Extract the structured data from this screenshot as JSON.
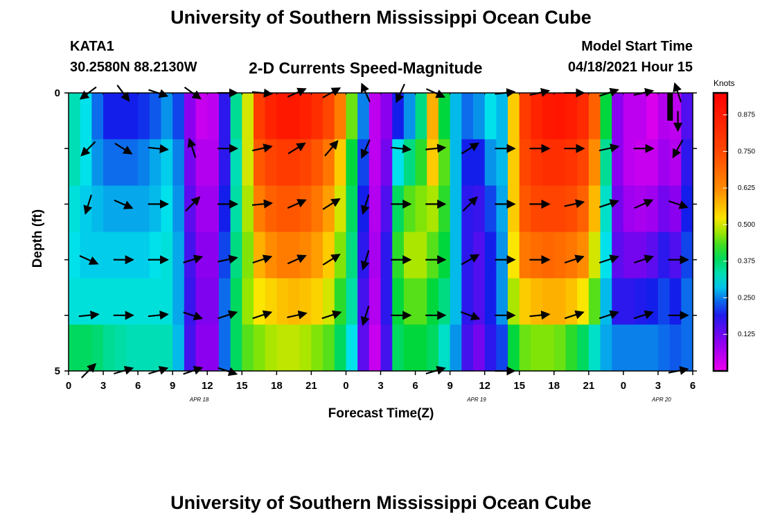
{
  "header": {
    "title": "University of Southern Mississippi Ocean Cube",
    "station": "KATA1",
    "coords": "30.2580N  88.2130W",
    "plot_title": "2-D Currents Speed-Magnitude",
    "model_label": "Model Start Time",
    "model_time": "04/18/2021 Hour 15"
  },
  "footer": {
    "title": "University of Southern Mississippi Ocean Cube"
  },
  "chart_data": {
    "type": "heatmap",
    "title": "2-D Currents Speed-Magnitude",
    "xlabel": "Forecast Time(Z)",
    "ylabel": "Depth (ft)",
    "x_ticks": [
      "0",
      "3",
      "6",
      "9",
      "12",
      "15",
      "18",
      "21",
      "0",
      "3",
      "6",
      "9",
      "12",
      "15",
      "18",
      "21",
      "0",
      "3",
      "6"
    ],
    "y_ticks": [
      "0",
      "5"
    ],
    "y_range": [
      0,
      5
    ],
    "date_labels": [
      {
        "text": "APR 18",
        "hour": 11.3
      },
      {
        "text": "APR 19",
        "hour": 35.3
      },
      {
        "text": "APR 20",
        "hour": 51.3
      }
    ],
    "colorbar": {
      "title": "Knots",
      "ticks": [
        "0.875",
        "0.750",
        "0.625",
        "0.500",
        "0.375",
        "0.250",
        "0.125"
      ],
      "tick_values": [
        0.875,
        0.75,
        0.625,
        0.5,
        0.375,
        0.25,
        0.125
      ],
      "range": [
        0,
        0.95
      ]
    },
    "hours": [
      0,
      1,
      2,
      3,
      4,
      5,
      6,
      7,
      8,
      9,
      10,
      11,
      12,
      13,
      14,
      15,
      16,
      17,
      18,
      19,
      20,
      21,
      22,
      23,
      24,
      25,
      26,
      27,
      28,
      29,
      30,
      31,
      32,
      33,
      34,
      35,
      36,
      37,
      38,
      39,
      40,
      41,
      42,
      43,
      44,
      45,
      46,
      47,
      48,
      49,
      50,
      51,
      52,
      53,
      54
    ],
    "speed_by_layer": [
      [
        0.33,
        0.3,
        0.24,
        0.2,
        0.2,
        0.2,
        0.21,
        0.23,
        0.26,
        0.22,
        0.1,
        0.04,
        0.05,
        0.18,
        0.35,
        0.5,
        0.78,
        0.85,
        0.88,
        0.88,
        0.86,
        0.82,
        0.75,
        0.65,
        0.45,
        0.25,
        0.05,
        0.1,
        0.2,
        0.26,
        0.36,
        0.58,
        0.4,
        0.28,
        0.24,
        0.26,
        0.3,
        0.28,
        0.55,
        0.78,
        0.85,
        0.88,
        0.89,
        0.87,
        0.83,
        0.7,
        0.4,
        0.1,
        0.05,
        0.05,
        0.02,
        0.06,
        0.05,
        0.15
      ],
      [
        0.33,
        0.3,
        0.26,
        0.24,
        0.24,
        0.24,
        0.25,
        0.27,
        0.29,
        0.25,
        0.12,
        0.06,
        0.06,
        0.18,
        0.33,
        0.5,
        0.72,
        0.76,
        0.78,
        0.78,
        0.76,
        0.72,
        0.66,
        0.55,
        0.4,
        0.22,
        0.05,
        0.12,
        0.3,
        0.36,
        0.42,
        0.55,
        0.44,
        0.28,
        0.2,
        0.2,
        0.26,
        0.28,
        0.55,
        0.75,
        0.8,
        0.82,
        0.82,
        0.8,
        0.76,
        0.62,
        0.35,
        0.1,
        0.05,
        0.04,
        0.04,
        0.08,
        0.06,
        0.18
      ],
      [
        0.31,
        0.29,
        0.28,
        0.27,
        0.27,
        0.27,
        0.27,
        0.28,
        0.3,
        0.26,
        0.14,
        0.08,
        0.08,
        0.2,
        0.34,
        0.48,
        0.65,
        0.7,
        0.72,
        0.72,
        0.7,
        0.66,
        0.6,
        0.5,
        0.38,
        0.2,
        0.06,
        0.15,
        0.38,
        0.44,
        0.46,
        0.48,
        0.42,
        0.28,
        0.18,
        0.17,
        0.22,
        0.27,
        0.55,
        0.72,
        0.75,
        0.76,
        0.76,
        0.74,
        0.7,
        0.57,
        0.32,
        0.12,
        0.08,
        0.07,
        0.08,
        0.12,
        0.1,
        0.2
      ],
      [
        0.3,
        0.29,
        0.29,
        0.29,
        0.29,
        0.29,
        0.29,
        0.3,
        0.31,
        0.27,
        0.16,
        0.1,
        0.1,
        0.22,
        0.36,
        0.46,
        0.58,
        0.62,
        0.65,
        0.65,
        0.63,
        0.6,
        0.55,
        0.46,
        0.36,
        0.18,
        0.07,
        0.18,
        0.42,
        0.48,
        0.48,
        0.44,
        0.4,
        0.28,
        0.18,
        0.15,
        0.2,
        0.26,
        0.52,
        0.66,
        0.68,
        0.69,
        0.68,
        0.66,
        0.62,
        0.5,
        0.3,
        0.14,
        0.12,
        0.12,
        0.14,
        0.18,
        0.15,
        0.22
      ],
      [
        0.31,
        0.31,
        0.31,
        0.31,
        0.31,
        0.31,
        0.31,
        0.31,
        0.31,
        0.27,
        0.17,
        0.11,
        0.11,
        0.24,
        0.38,
        0.47,
        0.52,
        0.54,
        0.56,
        0.57,
        0.56,
        0.54,
        0.5,
        0.42,
        0.34,
        0.16,
        0.06,
        0.18,
        0.4,
        0.44,
        0.44,
        0.4,
        0.36,
        0.28,
        0.18,
        0.15,
        0.2,
        0.26,
        0.48,
        0.55,
        0.57,
        0.58,
        0.58,
        0.56,
        0.52,
        0.44,
        0.28,
        0.18,
        0.18,
        0.19,
        0.2,
        0.22,
        0.2,
        0.24
      ],
      [
        0.38,
        0.38,
        0.37,
        0.35,
        0.34,
        0.33,
        0.33,
        0.33,
        0.33,
        0.28,
        0.16,
        0.1,
        0.1,
        0.24,
        0.38,
        0.44,
        0.46,
        0.48,
        0.49,
        0.49,
        0.48,
        0.46,
        0.44,
        0.38,
        0.3,
        0.14,
        0.04,
        0.16,
        0.38,
        0.4,
        0.4,
        0.38,
        0.32,
        0.26,
        0.16,
        0.12,
        0.18,
        0.22,
        0.4,
        0.45,
        0.46,
        0.46,
        0.45,
        0.42,
        0.38,
        0.32,
        0.27,
        0.25,
        0.25,
        0.25,
        0.25,
        0.24,
        0.23,
        0.24
      ]
    ],
    "vector_layers": [
      0,
      0.5,
      1.0,
      2.0,
      3.0,
      4.0,
      5.0
    ],
    "vector_hours": [
      1,
      4,
      7,
      10,
      13,
      16,
      19,
      22,
      25,
      28,
      31,
      34,
      37,
      40,
      43,
      46,
      49,
      52
    ],
    "vectors": [
      [
        [
          -0.8,
          -0.6
        ],
        [
          0.6,
          -0.8
        ],
        [
          0.9,
          -0.3
        ],
        [
          0.7,
          -0.5
        ],
        [
          1.0,
          0.0
        ],
        [
          1.0,
          -0.1
        ],
        [
          0.9,
          0.4
        ],
        [
          0.9,
          0.5
        ],
        [
          -0.4,
          0.9
        ],
        [
          -0.4,
          -0.9
        ],
        [
          0.9,
          -0.4
        ],
        [
          0.0,
          0.0
        ],
        [
          0.9,
          0.1
        ],
        [
          0.9,
          0.2
        ],
        [
          1.0,
          0.0
        ],
        [
          0.9,
          0.3
        ],
        [
          0.9,
          0.2
        ],
        [
          -0.3,
          0.9
        ]
      ],
      [
        [
          0.0,
          0
        ],
        [
          0,
          0
        ],
        [
          0,
          0
        ],
        [
          0,
          0
        ],
        [
          0,
          0
        ],
        [
          0,
          0
        ],
        [
          0,
          0
        ],
        [
          0,
          0
        ],
        [
          0,
          0
        ],
        [
          0,
          0
        ],
        [
          0,
          0
        ],
        [
          0,
          0
        ],
        [
          0,
          0
        ],
        [
          0,
          0
        ],
        [
          0,
          0
        ],
        [
          0,
          0
        ],
        [
          0,
          0
        ],
        [
          0.0,
          -1.0
        ]
      ],
      [
        [
          -0.7,
          -0.7
        ],
        [
          0.8,
          -0.5
        ],
        [
          1.0,
          -0.1
        ],
        [
          -0.3,
          0.9
        ],
        [
          1.0,
          0.0
        ],
        [
          0.9,
          0.2
        ],
        [
          0.8,
          0.5
        ],
        [
          0.6,
          0.7
        ],
        [
          -0.4,
          -0.9
        ],
        [
          1.0,
          -0.1
        ],
        [
          1.0,
          0.1
        ],
        [
          0.8,
          0.5
        ],
        [
          1.0,
          0.0
        ],
        [
          1.0,
          0.0
        ],
        [
          1.0,
          0.0
        ],
        [
          0.9,
          0.2
        ],
        [
          1.0,
          0.0
        ],
        [
          -0.5,
          -0.9
        ]
      ],
      [
        [
          -0.3,
          -0.95
        ],
        [
          0.9,
          -0.4
        ],
        [
          1.0,
          0.0
        ],
        [
          0.7,
          0.7
        ],
        [
          1.0,
          0.0
        ],
        [
          1.0,
          0.1
        ],
        [
          0.9,
          0.4
        ],
        [
          0.8,
          0.5
        ],
        [
          -0.3,
          -0.95
        ],
        [
          1.0,
          0.0
        ],
        [
          1.0,
          0.0
        ],
        [
          0.6,
          0.6
        ],
        [
          1.0,
          0.0
        ],
        [
          1.0,
          0.0
        ],
        [
          0.9,
          0.2
        ],
        [
          0.9,
          0.3
        ],
        [
          0.9,
          0.4
        ],
        [
          0.9,
          -0.3
        ]
      ],
      [
        [
          0.9,
          -0.4
        ],
        [
          1.0,
          0.0
        ],
        [
          1.0,
          0.0
        ],
        [
          0.95,
          0.3
        ],
        [
          0.95,
          0.2
        ],
        [
          0.9,
          0.3
        ],
        [
          0.9,
          0.4
        ],
        [
          0.8,
          0.5
        ],
        [
          -0.3,
          -0.95
        ],
        [
          1.0,
          0.0
        ],
        [
          1.0,
          0.0
        ],
        [
          0.7,
          0.4
        ],
        [
          1.0,
          0.0
        ],
        [
          1.0,
          0.0
        ],
        [
          0.9,
          0.3
        ],
        [
          0.9,
          0.3
        ],
        [
          0.9,
          0.3
        ],
        [
          1.0,
          0.0
        ]
      ],
      [
        [
          1.0,
          0.1
        ],
        [
          1.0,
          0.0
        ],
        [
          1.0,
          0.1
        ],
        [
          0.9,
          -0.3
        ],
        [
          0.9,
          0.3
        ],
        [
          0.9,
          0.3
        ],
        [
          0.9,
          0.2
        ],
        [
          0.9,
          0.3
        ],
        [
          -0.3,
          -0.95
        ],
        [
          1.0,
          0.0
        ],
        [
          1.0,
          0.0
        ],
        [
          0.8,
          -0.3
        ],
        [
          1.0,
          0.0
        ],
        [
          1.0,
          0.1
        ],
        [
          0.9,
          0.3
        ],
        [
          0.9,
          0.3
        ],
        [
          0.9,
          0.3
        ],
        [
          1.0,
          0.0
        ]
      ],
      [
        [
          0.7,
          0.7
        ],
        [
          1.0,
          0.3
        ],
        [
          1.0,
          0.3
        ],
        [
          0.9,
          0.3
        ],
        [
          0.9,
          -0.3
        ],
        [
          0.0,
          0.0
        ],
        [
          0,
          0
        ],
        [
          0,
          0
        ],
        [
          0,
          0
        ],
        [
          0,
          0
        ],
        [
          1.0,
          0.3
        ],
        [
          0.0,
          0
        ],
        [
          0.9,
          0
        ],
        [
          0,
          0
        ],
        [
          0,
          0
        ],
        [
          0,
          0
        ],
        [
          0,
          0
        ],
        [
          1.0,
          0.2
        ]
      ]
    ]
  }
}
